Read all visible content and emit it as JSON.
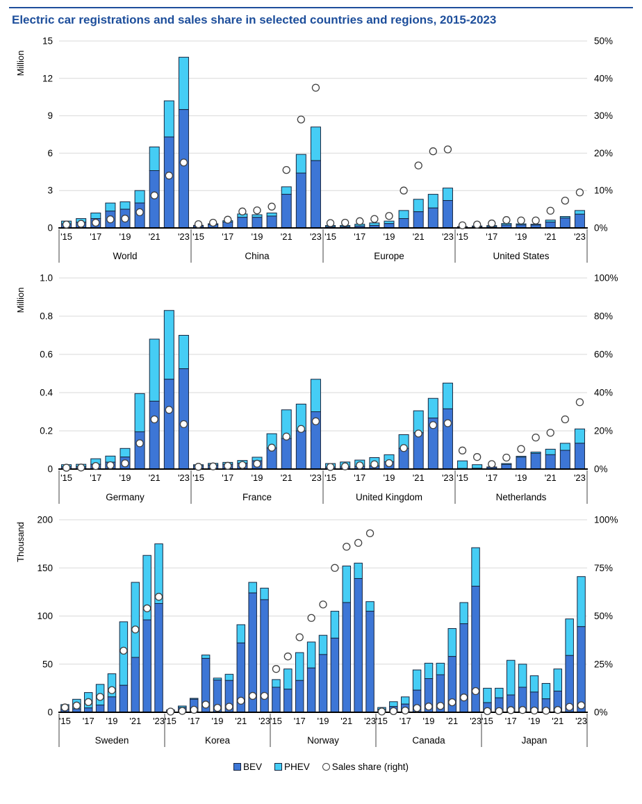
{
  "header": {
    "title": "Electric car registrations and sales share in selected countries and regions, 2015-2023",
    "accent_color": "#1d4e9b"
  },
  "legend": {
    "bev_label": "BEV",
    "phev_label": "PHEV",
    "share_label": "Sales share (right)"
  },
  "colors": {
    "bev": "#3d76d6",
    "phev": "#45cdf5",
    "bar_outline": "#16243e",
    "gridline": "#d9d9d9",
    "baseline": "#000000",
    "circle_stroke": "#404040",
    "circle_fill": "#ffffff",
    "divider": "#404040"
  },
  "chart_data": [
    {
      "id": "top",
      "type": "bar",
      "title": "",
      "x_tick_labels": [
        "'15",
        "'17",
        "'19",
        "'21",
        "'23"
      ],
      "left_axis": {
        "label": "Million",
        "max": 15,
        "tick_values": [
          0,
          3,
          6,
          9,
          12,
          15
        ],
        "tick_labels": [
          "0",
          "3",
          "6",
          "9",
          "12",
          "15"
        ]
      },
      "right_axis": {
        "max": 50,
        "tick_values": [
          0,
          10,
          20,
          30,
          40,
          50
        ],
        "tick_labels": [
          "0%",
          "10%",
          "20%",
          "30%",
          "40%",
          "50%"
        ]
      },
      "series_names": [
        "BEV",
        "PHEV",
        "Sales share (right)"
      ],
      "groups": [
        {
          "name": "World",
          "bev": [
            0.33,
            0.46,
            0.75,
            1.35,
            1.5,
            2.0,
            4.6,
            7.3,
            9.5
          ],
          "phev": [
            0.22,
            0.29,
            0.45,
            0.65,
            0.6,
            1.0,
            1.9,
            2.9,
            4.2
          ],
          "sales_share_pct": [
            0.9,
            1.1,
            1.4,
            2.3,
            2.5,
            4.2,
            8.7,
            14.0,
            17.5
          ]
        },
        {
          "name": "China",
          "bev": [
            0.15,
            0.26,
            0.47,
            0.85,
            0.85,
            0.95,
            2.7,
            4.4,
            5.4
          ],
          "phev": [
            0.06,
            0.08,
            0.11,
            0.27,
            0.21,
            0.25,
            0.6,
            1.5,
            2.7
          ],
          "sales_share_pct": [
            1.0,
            1.4,
            2.2,
            4.4,
            4.7,
            5.7,
            15.5,
            29.0,
            37.5
          ]
        },
        {
          "name": "Europe",
          "bev": [
            0.1,
            0.1,
            0.15,
            0.2,
            0.35,
            0.75,
            1.3,
            1.6,
            2.2
          ],
          "phev": [
            0.1,
            0.1,
            0.15,
            0.2,
            0.2,
            0.65,
            1.0,
            1.1,
            1.0
          ],
          "sales_share_pct": [
            1.3,
            1.4,
            1.8,
            2.4,
            3.2,
            10.0,
            16.7,
            20.5,
            21.0
          ]
        },
        {
          "name": "United States",
          "bev": [
            0.07,
            0.09,
            0.1,
            0.24,
            0.24,
            0.23,
            0.47,
            0.8,
            1.1
          ],
          "phev": [
            0.04,
            0.07,
            0.09,
            0.12,
            0.09,
            0.07,
            0.16,
            0.12,
            0.3
          ],
          "sales_share_pct": [
            0.7,
            0.9,
            1.2,
            2.1,
            2.0,
            2.0,
            4.6,
            7.3,
            9.5
          ]
        }
      ]
    },
    {
      "id": "middle",
      "type": "bar",
      "title": "",
      "x_tick_labels": [
        "'15",
        "'17",
        "'19",
        "'21",
        "'23"
      ],
      "left_axis": {
        "label": "Million",
        "max": 1.0,
        "tick_values": [
          0,
          0.2,
          0.4,
          0.6,
          0.8,
          1.0
        ],
        "tick_labels": [
          "0",
          "0.2",
          "0.4",
          "0.6",
          "0.8",
          "1.0"
        ]
      },
      "right_axis": {
        "max": 100,
        "tick_values": [
          0,
          20,
          40,
          60,
          80,
          100
        ],
        "tick_labels": [
          "0%",
          "20%",
          "40%",
          "60%",
          "80%",
          "100%"
        ]
      },
      "series_names": [
        "BEV",
        "PHEV",
        "Sales share (right)"
      ],
      "groups": [
        {
          "name": "Germany",
          "bev": [
            0.012,
            0.012,
            0.025,
            0.036,
            0.063,
            0.195,
            0.355,
            0.47,
            0.525
          ],
          "phev": [
            0.011,
            0.013,
            0.029,
            0.032,
            0.045,
            0.2,
            0.325,
            0.36,
            0.175
          ],
          "sales_share_pct": [
            0.7,
            0.8,
            1.6,
            2.0,
            3.0,
            13.5,
            26.0,
            31.0,
            23.5
          ]
        },
        {
          "name": "France",
          "bev": [
            0.017,
            0.021,
            0.025,
            0.031,
            0.043,
            0.11,
            0.16,
            0.2,
            0.3
          ],
          "phev": [
            0.006,
            0.009,
            0.01,
            0.014,
            0.019,
            0.075,
            0.15,
            0.14,
            0.17
          ],
          "sales_share_pct": [
            1.2,
            1.4,
            1.7,
            2.1,
            2.8,
            11.2,
            17.0,
            21.0,
            25.0
          ]
        },
        {
          "name": "United Kingdom",
          "bev": [
            0.01,
            0.011,
            0.014,
            0.016,
            0.038,
            0.108,
            0.19,
            0.267,
            0.315
          ],
          "phev": [
            0.019,
            0.026,
            0.033,
            0.044,
            0.037,
            0.072,
            0.115,
            0.103,
            0.135
          ],
          "sales_share_pct": [
            1.1,
            1.4,
            1.9,
            2.5,
            3.1,
            11.0,
            18.6,
            23.0,
            24.0
          ]
        },
        {
          "name": "Netherlands",
          "bev": [
            0.003,
            0.004,
            0.009,
            0.024,
            0.062,
            0.082,
            0.075,
            0.098,
            0.135
          ],
          "phev": [
            0.04,
            0.019,
            0.002,
            0.005,
            0.005,
            0.007,
            0.029,
            0.037,
            0.075
          ],
          "sales_share_pct": [
            9.7,
            6.3,
            2.6,
            6.0,
            10.5,
            16.5,
            19.0,
            26.0,
            35.0
          ]
        }
      ]
    },
    {
      "id": "bottom",
      "type": "bar",
      "title": "",
      "x_tick_labels": [
        "'15",
        "'17",
        "'19",
        "'21",
        "'23"
      ],
      "left_axis": {
        "label": "Thousand",
        "max": 200,
        "tick_values": [
          0,
          50,
          100,
          150,
          200
        ],
        "tick_labels": [
          "0",
          "50",
          "100",
          "150",
          "200"
        ]
      },
      "right_axis": {
        "max": 100,
        "tick_values": [
          0,
          25,
          50,
          75,
          100
        ],
        "tick_labels": [
          "0%",
          "25%",
          "50%",
          "75%",
          "100%"
        ]
      },
      "series_names": [
        "BEV",
        "PHEV",
        "Sales share (right)"
      ],
      "groups": [
        {
          "name": "Sweden",
          "bev": [
            3,
            3.5,
            4.5,
            7.5,
            16,
            28,
            57,
            96,
            113
          ],
          "phev": [
            5,
            10,
            16,
            21.5,
            24,
            66,
            78,
            67,
            62
          ],
          "sales_share_pct": [
            2.5,
            3.5,
            5.3,
            8.0,
            11.5,
            32.0,
            43.0,
            54.0,
            60.0
          ]
        },
        {
          "name": "Korea",
          "bev": [
            2,
            5,
            13.5,
            56,
            33.5,
            33,
            72,
            124,
            117
          ],
          "phev": [
            0.5,
            1.5,
            1,
            3.5,
            2,
            6.5,
            19,
            11,
            12
          ],
          "sales_share_pct": [
            0.3,
            0.7,
            1.3,
            4.0,
            2.3,
            2.9,
            6.0,
            8.5,
            8.5
          ]
        },
        {
          "name": "Norway",
          "bev": [
            26,
            24,
            33,
            46,
            60,
            77,
            114,
            139,
            105
          ],
          "phev": [
            8,
            21,
            29,
            27,
            20,
            28,
            38,
            16,
            10
          ],
          "sales_share_pct": [
            22.5,
            29.0,
            39.0,
            49.0,
            56.0,
            75.0,
            86.0,
            88.0,
            93.0
          ]
        },
        {
          "name": "Canada",
          "bev": [
            3,
            6,
            8.5,
            23,
            35,
            39,
            58,
            92,
            131
          ],
          "phev": [
            2,
            5,
            7.5,
            21,
            16,
            12,
            29,
            22,
            40
          ],
          "sales_share_pct": [
            0.4,
            0.6,
            0.9,
            2.2,
            3.0,
            3.3,
            5.2,
            7.7,
            11.0
          ]
        },
        {
          "name": "Japan",
          "bev": [
            10,
            15,
            18,
            26,
            21,
            14,
            22,
            59,
            89
          ],
          "phev": [
            15,
            10,
            36,
            24,
            17,
            16,
            23,
            38,
            52
          ],
          "sales_share_pct": [
            0.6,
            0.6,
            1.1,
            1.2,
            0.9,
            0.8,
            1.2,
            2.8,
            3.6
          ]
        }
      ]
    }
  ]
}
